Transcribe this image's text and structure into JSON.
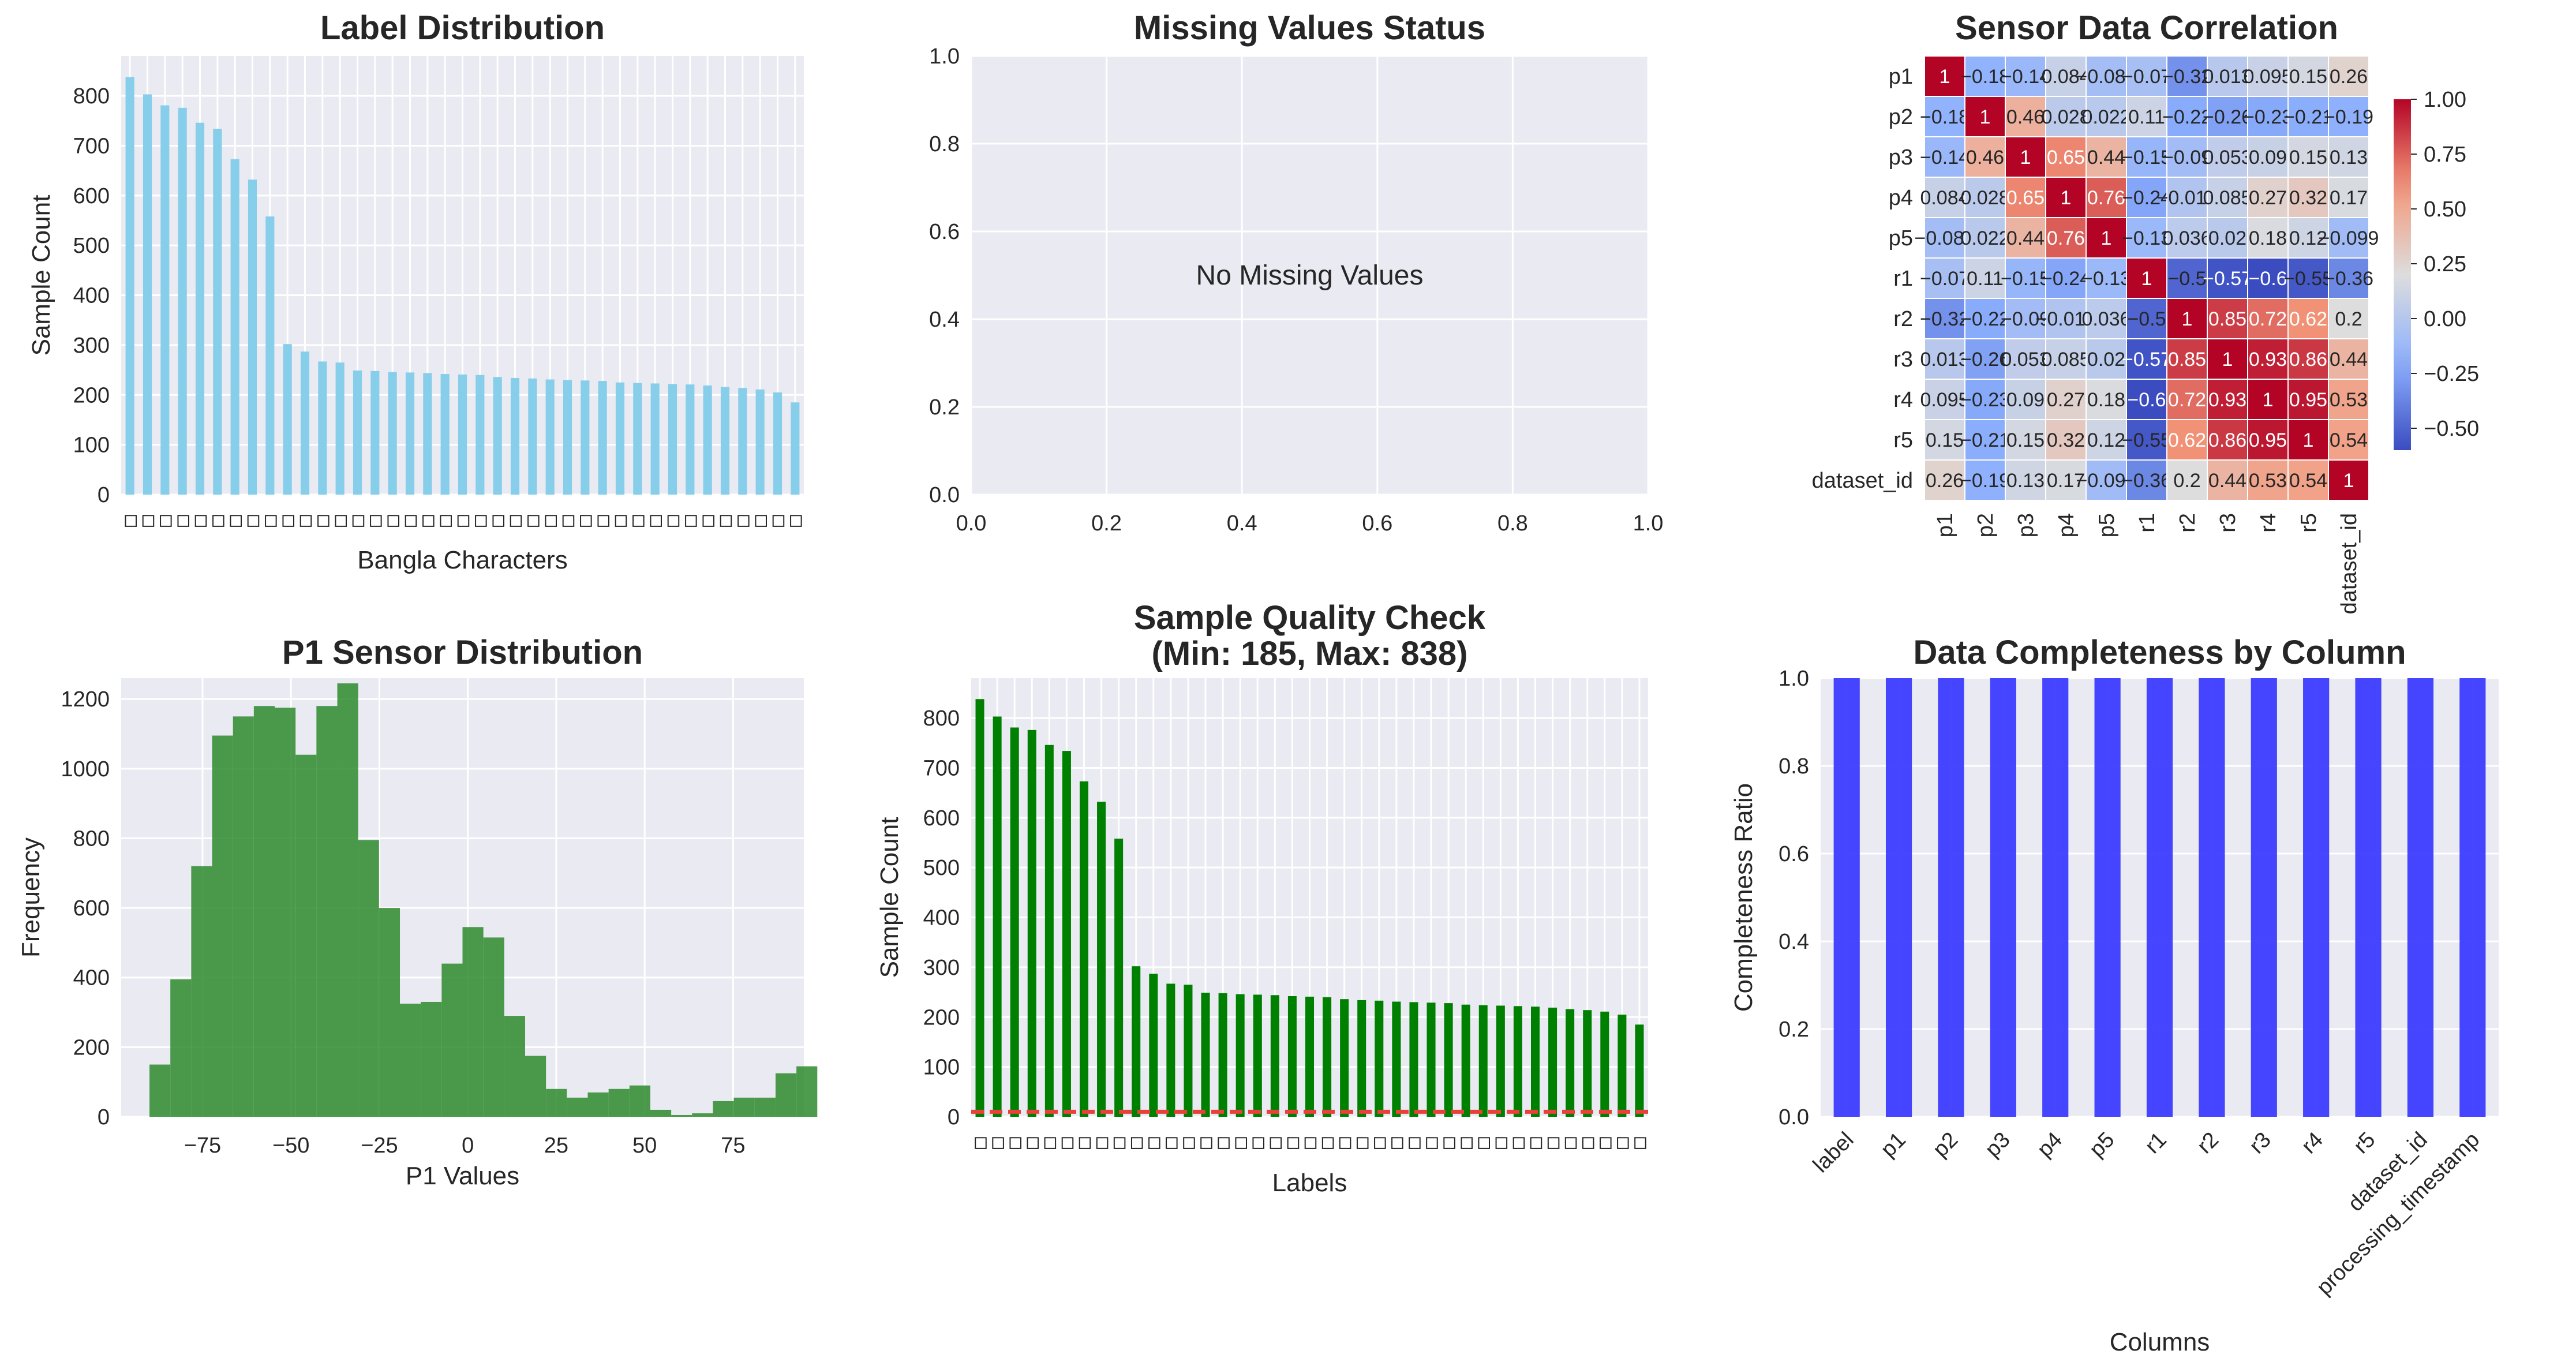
{
  "colors": {
    "axes_bg": "#eaeaf2",
    "grid": "#ffffff",
    "label_bars": "#87ceeb",
    "hist": "#2e8b2e",
    "quality_bars": "#008000",
    "threshold_line": "#e8413a",
    "completeness_bars": "#3c3cff"
  },
  "chart_data": [
    {
      "id": "label_distribution",
      "type": "bar",
      "title": "Label Distribution",
      "xlabel": "Bangla Characters",
      "ylabel": "Sample Count",
      "ylim": [
        0,
        880
      ],
      "yticks": [
        0,
        100,
        200,
        300,
        400,
        500,
        600,
        700,
        800
      ],
      "grid": true,
      "tick_glyph": "◇",
      "values": [
        838,
        803,
        781,
        776,
        746,
        734,
        673,
        632,
        558,
        302,
        287,
        267,
        265,
        249,
        248,
        246,
        245,
        244,
        242,
        241,
        240,
        236,
        234,
        233,
        231,
        230,
        229,
        228,
        225,
        224,
        223,
        222,
        221,
        219,
        216,
        214,
        211,
        205,
        185
      ]
    },
    {
      "id": "missing_values_status",
      "type": "table",
      "title": "Missing Values Status",
      "message": "No Missing Values",
      "xlim": [
        0,
        1
      ],
      "ylim": [
        0,
        1
      ],
      "xticks": [
        "0.0",
        "0.2",
        "0.4",
        "0.6",
        "0.8",
        "1.0"
      ],
      "yticks": [
        "0.0",
        "0.2",
        "0.4",
        "0.6",
        "0.8",
        "1.0"
      ],
      "grid": true
    },
    {
      "id": "sensor_correlation",
      "type": "heatmap",
      "title": "Sensor Data Correlation",
      "labels": [
        "p1",
        "p2",
        "p3",
        "p4",
        "p5",
        "r1",
        "r2",
        "r3",
        "r4",
        "r5",
        "dataset_id"
      ],
      "matrix": [
        [
          1,
          -0.18,
          -0.14,
          0.084,
          -0.084,
          -0.07,
          -0.32,
          0.013,
          0.095,
          0.15,
          0.26
        ],
        [
          -0.18,
          1,
          0.46,
          0.028,
          0.022,
          0.11,
          -0.22,
          -0.26,
          -0.23,
          -0.21,
          -0.19
        ],
        [
          -0.14,
          0.46,
          1,
          0.65,
          0.44,
          -0.15,
          -0.09,
          0.053,
          0.09,
          0.15,
          0.13
        ],
        [
          0.084,
          0.028,
          0.65,
          1,
          0.76,
          -0.24,
          -0.019,
          0.085,
          0.27,
          0.32,
          0.17
        ],
        [
          -0.084,
          0.022,
          0.44,
          0.76,
          1,
          -0.13,
          0.036,
          0.02,
          0.18,
          0.12,
          -0.099
        ],
        [
          -0.07,
          0.11,
          -0.15,
          -0.24,
          -0.13,
          1,
          -0.5,
          -0.57,
          -0.6,
          -0.55,
          -0.36
        ],
        [
          -0.32,
          -0.22,
          -0.09,
          -0.019,
          0.036,
          -0.5,
          1,
          0.85,
          0.72,
          0.62,
          0.2
        ],
        [
          0.013,
          -0.26,
          0.053,
          0.085,
          0.02,
          -0.57,
          0.85,
          1,
          0.93,
          0.86,
          0.44
        ],
        [
          0.095,
          -0.23,
          0.09,
          0.27,
          0.18,
          -0.6,
          0.72,
          0.93,
          1,
          0.95,
          0.53
        ],
        [
          0.15,
          -0.21,
          0.15,
          0.32,
          0.12,
          -0.55,
          0.62,
          0.86,
          0.95,
          1,
          0.54
        ],
        [
          0.26,
          -0.19,
          0.13,
          0.17,
          -0.099,
          -0.36,
          0.2,
          0.44,
          0.53,
          0.54,
          1
        ]
      ],
      "colorscale": "coolwarm",
      "vmin": -0.6,
      "vmax": 1.0,
      "colorbar_ticks": [
        "1.00",
        "0.75",
        "0.50",
        "0.25",
        "0.00",
        "−0.25",
        "−0.50"
      ],
      "colorbar_tick_values": [
        1.0,
        0.75,
        0.5,
        0.25,
        0.0,
        -0.25,
        -0.5
      ]
    },
    {
      "id": "p1_sensor_distribution",
      "type": "bar",
      "title": "P1 Sensor Distribution",
      "xlabel": "P1 Values",
      "ylabel": "Frequency",
      "bin_start": -90,
      "bin_width": 5.9,
      "counts": [
        150,
        395,
        720,
        1095,
        1150,
        1180,
        1175,
        1040,
        1180,
        1245,
        795,
        600,
        325,
        330,
        440,
        545,
        515,
        290,
        175,
        80,
        55,
        70,
        80,
        90,
        20,
        5,
        10,
        45,
        55,
        55,
        125,
        145
      ],
      "xlim": [
        -98,
        95
      ],
      "ylim": [
        0,
        1260
      ],
      "xticks": [
        "−75",
        "−50",
        "−25",
        "0",
        "25",
        "50",
        "75"
      ],
      "xtick_values": [
        -75,
        -50,
        -25,
        0,
        25,
        50,
        75
      ],
      "yticks": [
        0,
        200,
        400,
        600,
        800,
        1000,
        1200
      ],
      "grid": true
    },
    {
      "id": "sample_quality_check",
      "type": "bar",
      "title": "Sample Quality Check",
      "subtitle": "(Min: 185, Max: 838)",
      "xlabel": "Labels",
      "ylabel": "Sample Count",
      "ylim": [
        0,
        880
      ],
      "yticks": [
        0,
        100,
        200,
        300,
        400,
        500,
        600,
        700,
        800
      ],
      "threshold": 10,
      "grid": true,
      "tick_glyph": "◇",
      "values": [
        838,
        803,
        781,
        776,
        746,
        734,
        673,
        632,
        558,
        302,
        287,
        267,
        265,
        249,
        248,
        246,
        245,
        244,
        242,
        241,
        240,
        236,
        234,
        233,
        231,
        230,
        229,
        228,
        225,
        224,
        223,
        222,
        221,
        219,
        216,
        214,
        211,
        205,
        185
      ]
    },
    {
      "id": "data_completeness",
      "type": "bar",
      "title": "Data Completeness by Column",
      "xlabel": "Columns",
      "ylabel": "Completeness Ratio",
      "categories": [
        "label",
        "p1",
        "p2",
        "p3",
        "p4",
        "p5",
        "r1",
        "r2",
        "r3",
        "r4",
        "r5",
        "dataset_id",
        "processing_timestamp"
      ],
      "values": [
        1,
        1,
        1,
        1,
        1,
        1,
        1,
        1,
        1,
        1,
        1,
        1,
        1
      ],
      "ylim": [
        0,
        1
      ],
      "yticks": [
        "0.0",
        "0.2",
        "0.4",
        "0.6",
        "0.8",
        "1.0"
      ],
      "grid": true
    }
  ]
}
